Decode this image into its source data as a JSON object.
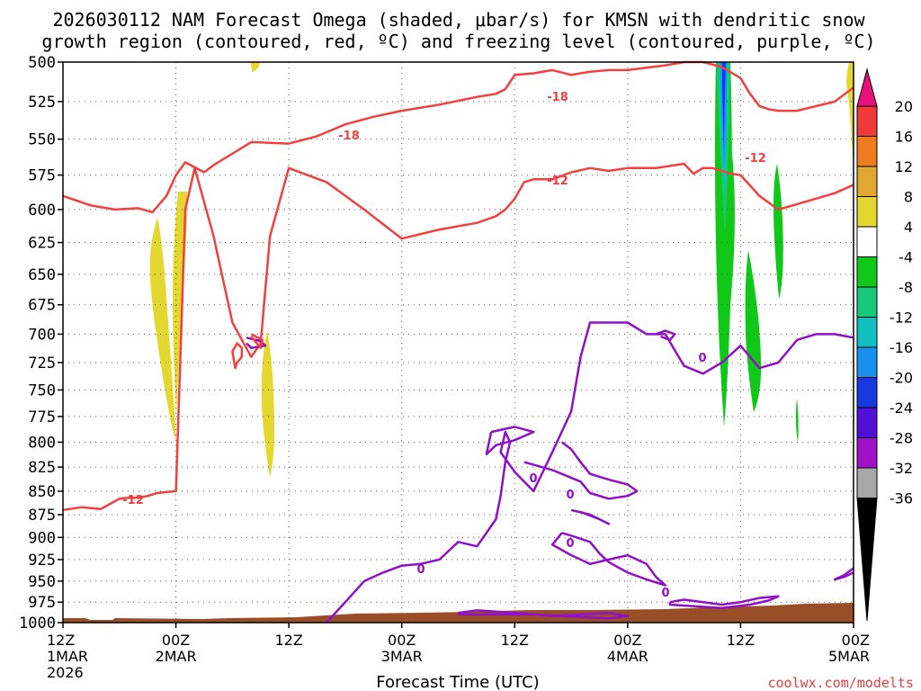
{
  "chart_data": {
    "type": "time-height contour",
    "title_line1": "2026030112 NAM Forecast Omega (shaded, μbar/s) for KMSN with dendritic snow",
    "title_line2": "growth region (contoured, red, ºC) and freezing level (contoured, purple, ºC)",
    "xlabel": "Forecast Time (UTC)",
    "credit": "coolwx.com/modelts",
    "x_ticks": [
      {
        "hour": 0,
        "l1": "12Z",
        "l2": "1MAR",
        "l3": "2026"
      },
      {
        "hour": 12,
        "l1": "00Z",
        "l2": "2MAR",
        "l3": ""
      },
      {
        "hour": 24,
        "l1": "12Z",
        "l2": "",
        "l3": ""
      },
      {
        "hour": 36,
        "l1": "00Z",
        "l2": "3MAR",
        "l3": ""
      },
      {
        "hour": 48,
        "l1": "12Z",
        "l2": "",
        "l3": ""
      },
      {
        "hour": 60,
        "l1": "00Z",
        "l2": "4MAR",
        "l3": ""
      },
      {
        "hour": 72,
        "l1": "12Z",
        "l2": "",
        "l3": ""
      },
      {
        "hour": 84,
        "l1": "00Z",
        "l2": "5MAR",
        "l3": ""
      }
    ],
    "xlim": [
      0,
      84
    ],
    "ylim_hPa": [
      1000,
      500
    ],
    "y_ticks": [
      "500",
      "525",
      "550",
      "575",
      "600",
      "625",
      "650",
      "675",
      "700",
      "725",
      "750",
      "775",
      "800",
      "825",
      "850",
      "875",
      "900",
      "925",
      "950",
      "975",
      "1000"
    ],
    "colorbar": {
      "labels": [
        "20",
        "16",
        "12",
        "8",
        "4",
        "-4",
        "-8",
        "-12",
        "-16",
        "-20",
        "-24",
        "-28",
        "-32",
        "-36"
      ],
      "colors": [
        "#e8107a",
        "#f03a3a",
        "#f07a1e",
        "#e0a830",
        "#e4d830",
        "#ffffff",
        "#10c818",
        "#18c87a",
        "#10c0c0",
        "#1890f0",
        "#1838e0",
        "#5010d8",
        "#a010c8",
        "#a8a8a8",
        "#000000"
      ]
    },
    "contour_labels": {
      "m18": "-18",
      "m12": "-12",
      "zero": "0"
    },
    "colors": {
      "dgz": "#f04040",
      "freezing": "#9010c8",
      "ground": "#9a4e28",
      "yellow": "#e4d830",
      "green": "#10c818"
    },
    "series": [
      {
        "name": "-18C isotherm",
        "hour": [
          0,
          3,
          5.5,
          8,
          9.5,
          11,
          12,
          13,
          15,
          16,
          20,
          24,
          27,
          30,
          33,
          36,
          40,
          44,
          46,
          47,
          48,
          50,
          52,
          54,
          56,
          58,
          60,
          64,
          66,
          68,
          70,
          72,
          73,
          74,
          75,
          76,
          78,
          80,
          82,
          84
        ],
        "p": [
          590,
          597,
          600,
          599,
          602,
          590,
          575,
          566,
          573,
          568,
          552,
          553,
          548,
          540,
          535,
          531,
          527,
          522,
          520,
          517,
          508,
          507,
          505,
          508,
          506,
          505,
          505,
          502,
          500,
          500,
          503,
          510,
          520,
          528,
          530,
          531,
          531,
          528,
          525,
          516
        ]
      },
      {
        "name": "-12C isotherm",
        "hour": [
          0,
          2,
          4,
          6,
          7,
          8,
          9,
          10,
          12,
          13,
          14,
          16,
          18,
          20,
          21,
          22,
          24,
          28,
          32,
          36,
          40,
          44,
          46,
          47,
          48,
          49,
          50,
          52,
          54,
          56,
          58,
          60,
          63,
          66,
          67,
          68,
          69,
          70,
          71,
          72,
          74,
          76,
          78,
          80,
          82,
          84
        ],
        "p": [
          870,
          867,
          869,
          858,
          857,
          857,
          855,
          852,
          850,
          600,
          570,
          620,
          690,
          720,
          708,
          620,
          570,
          580,
          600,
          622,
          615,
          610,
          605,
          600,
          592,
          580,
          578,
          578,
          573,
          570,
          572,
          570,
          570,
          567,
          574,
          570,
          570,
          572,
          574,
          575,
          590,
          600,
          596,
          592,
          588,
          582
        ]
      },
      {
        "name": "0C isotherm",
        "hour": [
          28,
          30,
          32,
          34,
          36,
          38,
          40,
          42,
          44,
          46,
          46.5,
          47,
          47.5,
          47,
          46.5,
          48,
          50,
          52,
          54,
          55,
          56,
          58,
          60,
          62,
          64,
          66,
          68,
          70,
          72,
          74,
          76,
          78,
          80,
          82,
          84
        ],
        "p": [
          1000,
          975,
          950,
          940,
          932,
          930,
          925,
          905,
          910,
          880,
          855,
          820,
          800,
          790,
          810,
          830,
          850,
          810,
          770,
          720,
          690,
          690,
          690,
          700,
          700,
          728,
          735,
          725,
          710,
          730,
          725,
          705,
          700,
          700,
          703
        ]
      }
    ]
  }
}
